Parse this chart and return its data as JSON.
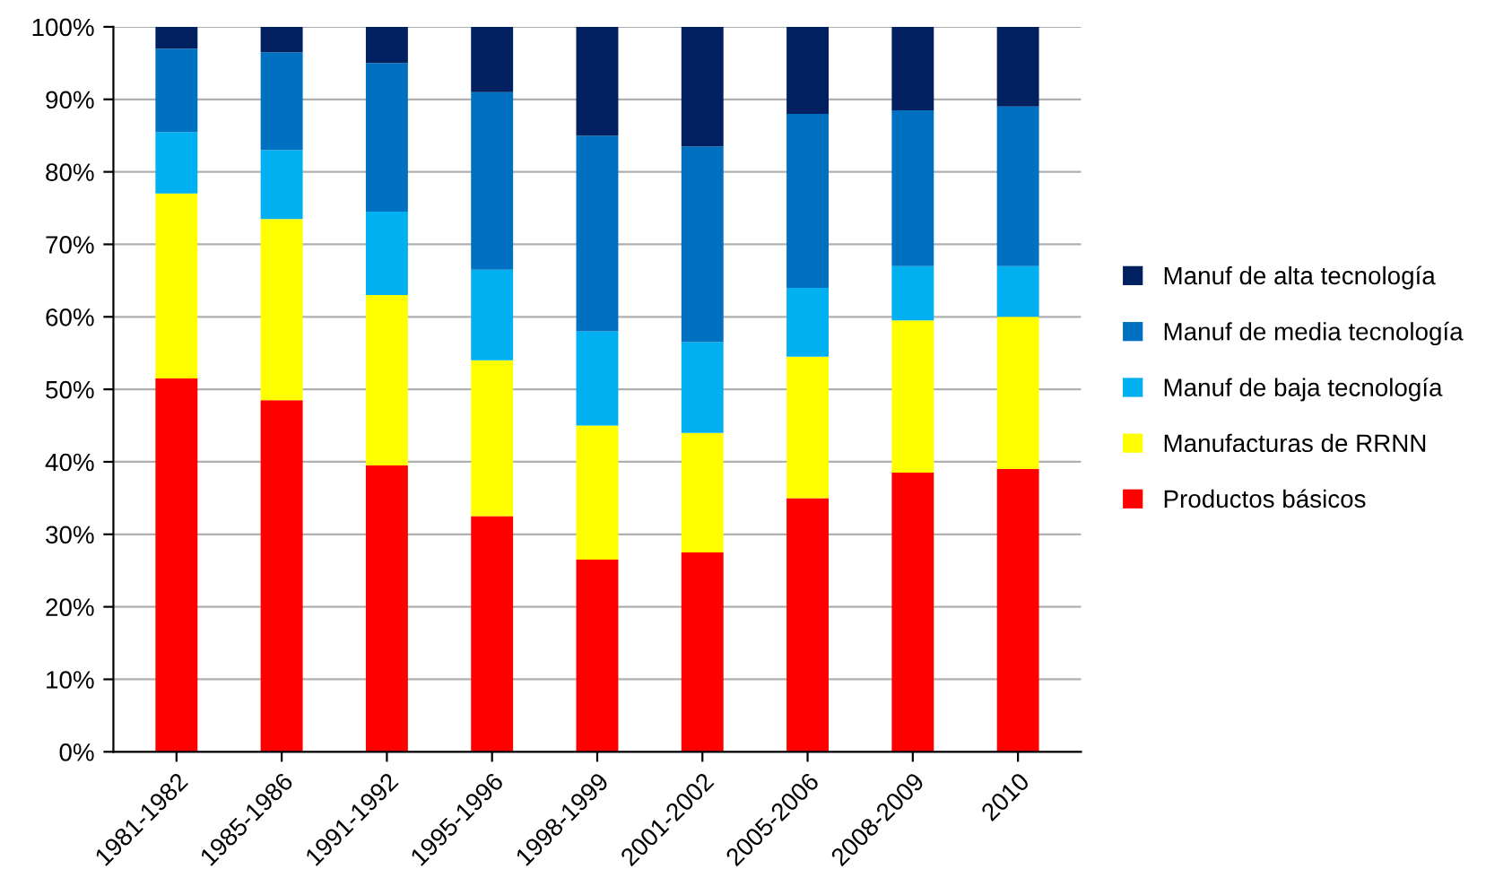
{
  "chart_data": {
    "type": "bar",
    "stacked": true,
    "categories": [
      "1981-1982",
      "1985-1986",
      "1991-1992",
      "1995-1996",
      "1998-1999",
      "2001-2002",
      "2005-2006",
      "2008-2009",
      "2010"
    ],
    "series": [
      {
        "name": "Productos básicos",
        "color": "#ff0000",
        "values": [
          51.5,
          48.5,
          39.5,
          32.5,
          26.5,
          27.5,
          35,
          38.5,
          39
        ]
      },
      {
        "name": "Manufacturas de RRNN",
        "color": "#ffff00",
        "values": [
          25.5,
          25,
          23.5,
          21.5,
          18.5,
          16.5,
          19.5,
          21,
          21
        ]
      },
      {
        "name": "Manuf de baja tecnología",
        "color": "#00b0f0",
        "values": [
          8.5,
          9.5,
          11.5,
          12.5,
          13,
          12.5,
          9.5,
          7.5,
          7
        ]
      },
      {
        "name": "Manuf de media tecnología",
        "color": "#0070c0",
        "values": [
          11.5,
          13.5,
          20.5,
          24.5,
          27,
          27,
          24,
          21.5,
          22
        ]
      },
      {
        "name": "Manuf de alta tecnología",
        "color": "#002060",
        "values": [
          3,
          3.5,
          5,
          9,
          15,
          16.5,
          12,
          11.5,
          11
        ]
      }
    ],
    "ylim": [
      0,
      100
    ],
    "yticks": [
      {
        "value": 0,
        "label": "0%"
      },
      {
        "value": 10,
        "label": "10%"
      },
      {
        "value": 20,
        "label": "20%"
      },
      {
        "value": 30,
        "label": "30%"
      },
      {
        "value": 40,
        "label": "40%"
      },
      {
        "value": 50,
        "label": "50%"
      },
      {
        "value": 60,
        "label": "60%"
      },
      {
        "value": 70,
        "label": "70%"
      },
      {
        "value": 80,
        "label": "80%"
      },
      {
        "value": 90,
        "label": "90%"
      },
      {
        "value": 100,
        "label": "100%"
      }
    ],
    "grid": "y",
    "legend": "right"
  }
}
